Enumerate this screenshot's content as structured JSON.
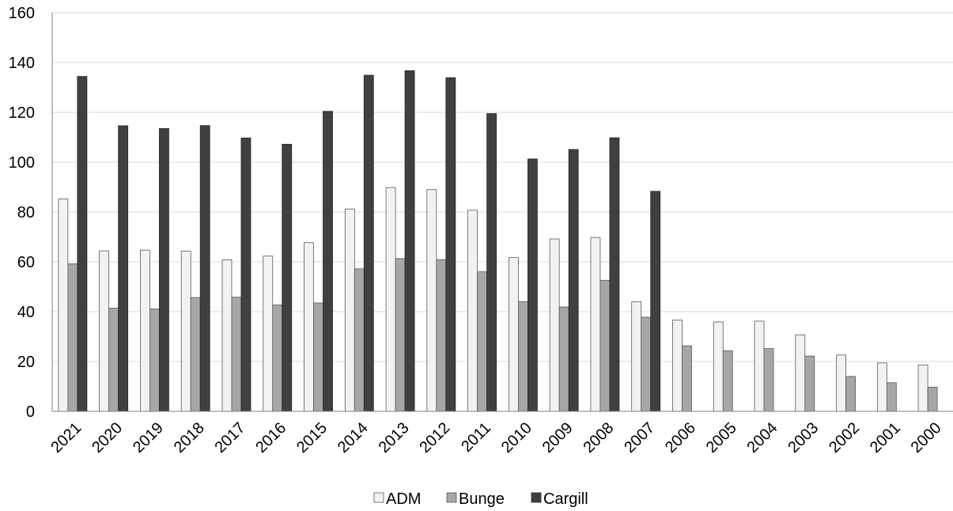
{
  "chart_data": {
    "type": "bar",
    "categories": [
      "2021",
      "2020",
      "2019",
      "2018",
      "2017",
      "2016",
      "2015",
      "2014",
      "2013",
      "2012",
      "2011",
      "2010",
      "2009",
      "2008",
      "2007",
      "2006",
      "2005",
      "2004",
      "2003",
      "2002",
      "2001",
      "2000"
    ],
    "series": [
      {
        "name": "ADM",
        "color": "#f2f2f2",
        "values": [
          85.2,
          64.4,
          64.7,
          64.3,
          60.8,
          62.3,
          67.7,
          81.2,
          89.8,
          89.0,
          80.7,
          61.7,
          69.2,
          69.8,
          44.0,
          36.6,
          35.9,
          36.2,
          30.7,
          22.6,
          19.4,
          18.6
        ]
      },
      {
        "name": "Bunge",
        "color": "#a6a6a6",
        "values": [
          59.2,
          41.4,
          41.1,
          45.7,
          45.8,
          42.7,
          43.5,
          57.2,
          61.3,
          60.9,
          56.0,
          44.0,
          41.9,
          52.6,
          37.8,
          26.3,
          24.3,
          25.2,
          22.2,
          14.0,
          11.5,
          9.7
        ]
      },
      {
        "name": "Cargill",
        "color": "#404040",
        "values": [
          134.4,
          114.6,
          113.5,
          114.7,
          109.7,
          107.2,
          120.4,
          134.9,
          136.7,
          133.9,
          119.5,
          101.3,
          105.1,
          109.8,
          88.3,
          null,
          null,
          null,
          null,
          null,
          null,
          null
        ]
      }
    ],
    "yticks": [
      "0",
      "20",
      "40",
      "60",
      "80",
      "100",
      "120",
      "140",
      "160"
    ],
    "ylim": [
      0,
      160
    ],
    "grid": true,
    "legend_position": "bottom"
  }
}
